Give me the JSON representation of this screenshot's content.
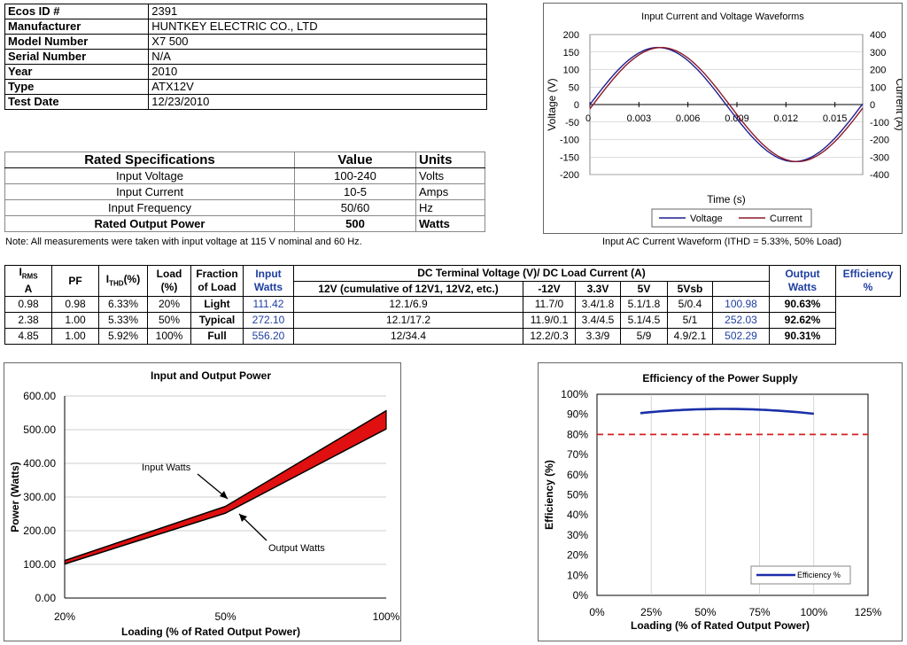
{
  "info": {
    "rows": [
      {
        "label": "Ecos ID #",
        "value": "2391"
      },
      {
        "label": "Manufacturer",
        "value": "HUNTKEY ELECTRIC CO., LTD"
      },
      {
        "label": "Model Number",
        "value": "X7 500"
      },
      {
        "label": "Serial Number",
        "value": "N/A"
      },
      {
        "label": "Year",
        "value": "2010"
      },
      {
        "label": "Type",
        "value": "ATX12V"
      },
      {
        "label": "Test Date",
        "value": "12/23/2010"
      }
    ]
  },
  "specs": {
    "headers": [
      "Rated Specifications",
      "Value",
      "Units"
    ],
    "rows": [
      {
        "name": "Input Voltage",
        "value": "100-240",
        "unit": "Volts"
      },
      {
        "name": "Input Current",
        "value": "10-5",
        "unit": "Amps"
      },
      {
        "name": "Input Frequency",
        "value": "50/60",
        "unit": "Hz"
      },
      {
        "name": "Rated Output Power",
        "value": "500",
        "unit": "Watts"
      }
    ],
    "note": "Note: All measurements were taken with input voltage at 115 V nominal and 60 Hz."
  },
  "performance": {
    "headers": {
      "irms": "I",
      "irms_sub": "RMS",
      "irms_unit": "A",
      "pf": "PF",
      "ithd": "I",
      "ithd_sub": "THD",
      "ithd_unit": "(%)",
      "load": "Load",
      "load_unit": "(%)",
      "fraction": "Fraction",
      "fraction2": "of Load",
      "input": "Input",
      "input2": "Watts",
      "dc_group": "DC Terminal Voltage (V)/ DC Load Current (A)",
      "v12": "12V (cumulative of 12V1, 12V2, etc.)",
      "vm12": "-12V",
      "v33": "3.3V",
      "v5": "5V",
      "v5sb": "5Vsb",
      "output": "Output",
      "output2": "Watts",
      "eff": "Efficiency",
      "eff2": "%"
    },
    "rows": [
      {
        "irms": "0.98",
        "pf": "0.98",
        "ithd": "6.33%",
        "load": "20%",
        "fraction": "Light",
        "input": "111.42",
        "v12": "12.1/6.9",
        "vm12": "11.7/0",
        "v33": "3.4/1.8",
        "v5": "5.1/1.8",
        "v5sb": "5/0.4",
        "output": "100.98",
        "eff": "90.63%"
      },
      {
        "irms": "2.38",
        "pf": "1.00",
        "ithd": "5.33%",
        "load": "50%",
        "fraction": "Typical",
        "input": "272.10",
        "v12": "12.1/17.2",
        "vm12": "11.9/0.1",
        "v33": "3.4/4.5",
        "v5": "5.1/4.5",
        "v5sb": "5/1",
        "output": "252.03",
        "eff": "92.62%"
      },
      {
        "irms": "4.85",
        "pf": "1.00",
        "ithd": "5.92%",
        "load": "100%",
        "fraction": "Full",
        "input": "556.20",
        "v12": "12/34.4",
        "vm12": "12.2/0.3",
        "v33": "3.3/9",
        "v5": "5/9",
        "v5sb": "4.9/2.1",
        "output": "502.29",
        "eff": "90.31%"
      }
    ]
  },
  "chart_data": [
    {
      "type": "line",
      "title": "Input Current and Voltage Waveforms",
      "caption": "Input AC Current Waveform (ITHD = 5.33%, 50% Load)",
      "xlabel": "Time (s)",
      "ylabel": "Voltage (V)",
      "y2label": "Current (A)",
      "xlim": [
        0,
        0.0167
      ],
      "xticks": [
        "0",
        "0.003",
        "0.006",
        "0.009",
        "0.012",
        "0.015"
      ],
      "ylim": [
        -200,
        200
      ],
      "yticks": [
        "200",
        "150",
        "100",
        "50",
        "0",
        "-50",
        "-100",
        "-150",
        "-200"
      ],
      "y2lim": [
        -400,
        400
      ],
      "y2ticks": [
        "400",
        "300",
        "200",
        "100",
        "0",
        "-100",
        "-200",
        "-300",
        "-400"
      ],
      "series": [
        {
          "name": "Voltage",
          "color": "#1f1f8f",
          "amplitude": 163,
          "phase": 0
        },
        {
          "name": "Current",
          "color": "#8b1a2a",
          "amplitude": 163,
          "phase": 0.0002
        }
      ]
    },
    {
      "type": "area",
      "title": "Input and Output Power",
      "xlabel": "Loading (% of Rated Output Power)",
      "ylabel": "Power (Watts)",
      "categories": [
        "20%",
        "50%",
        "100%"
      ],
      "ylim": [
        0,
        600
      ],
      "yticks": [
        "600.00",
        "500.00",
        "400.00",
        "300.00",
        "200.00",
        "100.00",
        "0.00"
      ],
      "series": [
        {
          "name": "Input Watts",
          "values": [
            111.42,
            272.1,
            556.2
          ]
        },
        {
          "name": "Output Watts",
          "values": [
            100.98,
            252.03,
            502.29
          ]
        }
      ],
      "annotations": [
        "Input Watts",
        "Output Watts"
      ],
      "color": "#e01010"
    },
    {
      "type": "line",
      "title": "Efficiency of the Power Supply",
      "xlabel": "Loading (% of Rated Output Power)",
      "ylabel": "Efficiency (%)",
      "xlim": [
        0,
        125
      ],
      "xticks": [
        "0%",
        "25%",
        "50%",
        "75%",
        "100%",
        "125%"
      ],
      "ylim": [
        0,
        100
      ],
      "yticks": [
        "100%",
        "90%",
        "80%",
        "70%",
        "60%",
        "50%",
        "40%",
        "30%",
        "20%",
        "10%",
        "0%"
      ],
      "series": [
        {
          "name": "Efficiency %",
          "x": [
            20,
            50,
            100
          ],
          "values": [
            90.63,
            92.62,
            90.31
          ],
          "color": "#1a2fa8"
        }
      ],
      "reference_line": {
        "value": 80,
        "color": "#d32020"
      }
    }
  ]
}
